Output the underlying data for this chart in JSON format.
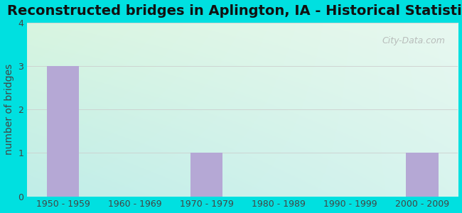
{
  "title": "Reconstructed bridges in Aplington, IA - Historical Statistics",
  "categories": [
    "1950 - 1959",
    "1960 - 1969",
    "1970 - 1979",
    "1980 - 1989",
    "1990 - 1999",
    "2000 - 2009"
  ],
  "values": [
    3,
    0,
    1,
    0,
    0,
    1
  ],
  "bar_color": "#b5a8d5",
  "ylabel": "number of bridges",
  "ylim": [
    0,
    4
  ],
  "yticks": [
    0,
    1,
    2,
    3,
    4
  ],
  "title_fontsize": 14,
  "axis_label_fontsize": 10,
  "tick_fontsize": 9,
  "background_outer": "#00e0e0",
  "bg_top_left": "#d8f5e0",
  "bg_top_right": "#e8f8f0",
  "bg_bottom_left": "#c0ede8",
  "bg_bottom_right": "#d8f4ee",
  "grid_color": "#cccccc",
  "watermark": "City-Data.com"
}
